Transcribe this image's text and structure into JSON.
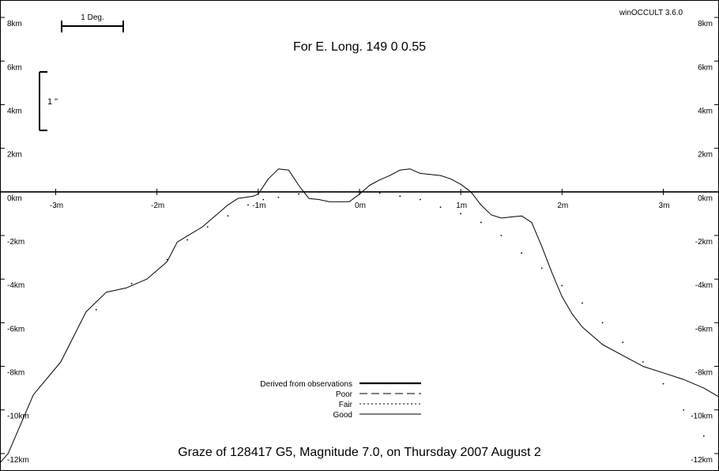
{
  "version_label": "winOCCULT 3.6.0",
  "title": "For E. Long.  149  0  0.55",
  "footer": "Graze of   128417  G5,  Magnitude   7.0,  on Thursday  2007  August   2",
  "scale_bar_deg_label": "1 Deg.",
  "scale_bar_arcsec_label": "1 \"",
  "legend": {
    "items": [
      {
        "label": "Derived from observations",
        "style": "thick"
      },
      {
        "label": "Poor",
        "style": "dashed"
      },
      {
        "label": "Fair",
        "style": "dotted"
      },
      {
        "label": "Good",
        "style": "thin"
      }
    ]
  },
  "chart_data": {
    "type": "line",
    "xlabel": "",
    "ylabel": "",
    "xlim": [
      -3.55,
      3.55
    ],
    "ylim": [
      -12.8,
      8.8
    ],
    "x_ticks": [
      {
        "v": -3,
        "label": "-3m"
      },
      {
        "v": -2,
        "label": "-2m"
      },
      {
        "v": -1,
        "label": "-1m"
      },
      {
        "v": 0,
        "label": "0m"
      },
      {
        "v": 1,
        "label": "1m"
      },
      {
        "v": 2,
        "label": "2m"
      },
      {
        "v": 3,
        "label": "3m"
      }
    ],
    "y_ticks": [
      {
        "v": 8,
        "label": "8km"
      },
      {
        "v": 6,
        "label": "6km"
      },
      {
        "v": 4,
        "label": "4km"
      },
      {
        "v": 2,
        "label": "2km"
      },
      {
        "v": 0,
        "label": "0km"
      },
      {
        "v": -2,
        "label": "-2km"
      },
      {
        "v": -4,
        "label": "-4km"
      },
      {
        "v": -6,
        "label": "-6km"
      },
      {
        "v": -8,
        "label": "-8km"
      },
      {
        "v": -10,
        "label": "-10km"
      },
      {
        "v": -12,
        "label": "-12km"
      }
    ],
    "series": [
      {
        "style": "thin",
        "x": [
          -3.7,
          -3.47,
          -3.22,
          -2.95,
          -2.7,
          -2.5,
          -2.3,
          -2.1,
          -1.9,
          -1.8,
          -1.55,
          -1.3,
          -1.2,
          -1.05,
          -1.0,
          -0.9,
          -0.8,
          -0.7,
          -0.6,
          -0.5,
          -0.4,
          -0.3,
          -0.2,
          -0.1,
          0.0,
          0.1,
          0.2,
          0.3,
          0.4,
          0.5,
          0.6,
          0.7,
          0.8,
          0.9,
          1.0,
          1.1,
          1.2,
          1.3,
          1.4,
          1.5,
          1.6,
          1.7,
          1.8,
          1.9,
          2.0,
          2.1,
          2.2,
          2.4,
          2.6,
          2.8,
          3.0,
          3.2,
          3.4,
          3.55,
          3.65
        ],
        "y": [
          -13.2,
          -12.0,
          -9.3,
          -7.8,
          -5.5,
          -4.6,
          -4.4,
          -4.0,
          -3.2,
          -2.3,
          -1.6,
          -0.6,
          -0.3,
          -0.2,
          -0.1,
          0.6,
          1.05,
          1.0,
          0.3,
          -0.3,
          -0.35,
          -0.45,
          -0.45,
          -0.45,
          -0.1,
          0.3,
          0.55,
          0.75,
          1.0,
          1.05,
          0.85,
          0.8,
          0.75,
          0.6,
          0.35,
          0.0,
          -0.6,
          -1.05,
          -1.2,
          -1.15,
          -1.1,
          -1.4,
          -2.5,
          -3.7,
          -4.8,
          -5.6,
          -6.2,
          -7.0,
          -7.5,
          -8.0,
          -8.3,
          -8.6,
          -9.0,
          -9.4,
          -10.0
        ]
      },
      {
        "style": "dotted",
        "x": [
          -2.6,
          -2.25,
          -1.9,
          -1.7,
          -1.5,
          -1.3,
          -1.1,
          -0.95,
          -0.8,
          -0.6,
          -0.4,
          -0.2,
          0.0,
          0.2,
          0.4,
          0.6,
          0.8,
          1.0,
          1.2,
          1.4,
          1.6,
          1.8,
          2.0,
          2.2,
          2.4,
          2.6,
          2.8,
          3.0,
          3.2,
          3.4
        ],
        "y": [
          -5.4,
          -4.2,
          -3.1,
          -2.2,
          -1.6,
          -1.1,
          -0.6,
          -0.35,
          -0.25,
          -0.1,
          0.0,
          0.0,
          0.0,
          -0.05,
          -0.2,
          -0.35,
          -0.7,
          -1.0,
          -1.4,
          -2.0,
          -2.8,
          -3.5,
          -4.3,
          -5.1,
          -6.0,
          -6.9,
          -7.8,
          -8.8,
          -10.0,
          -11.2
        ]
      }
    ]
  }
}
